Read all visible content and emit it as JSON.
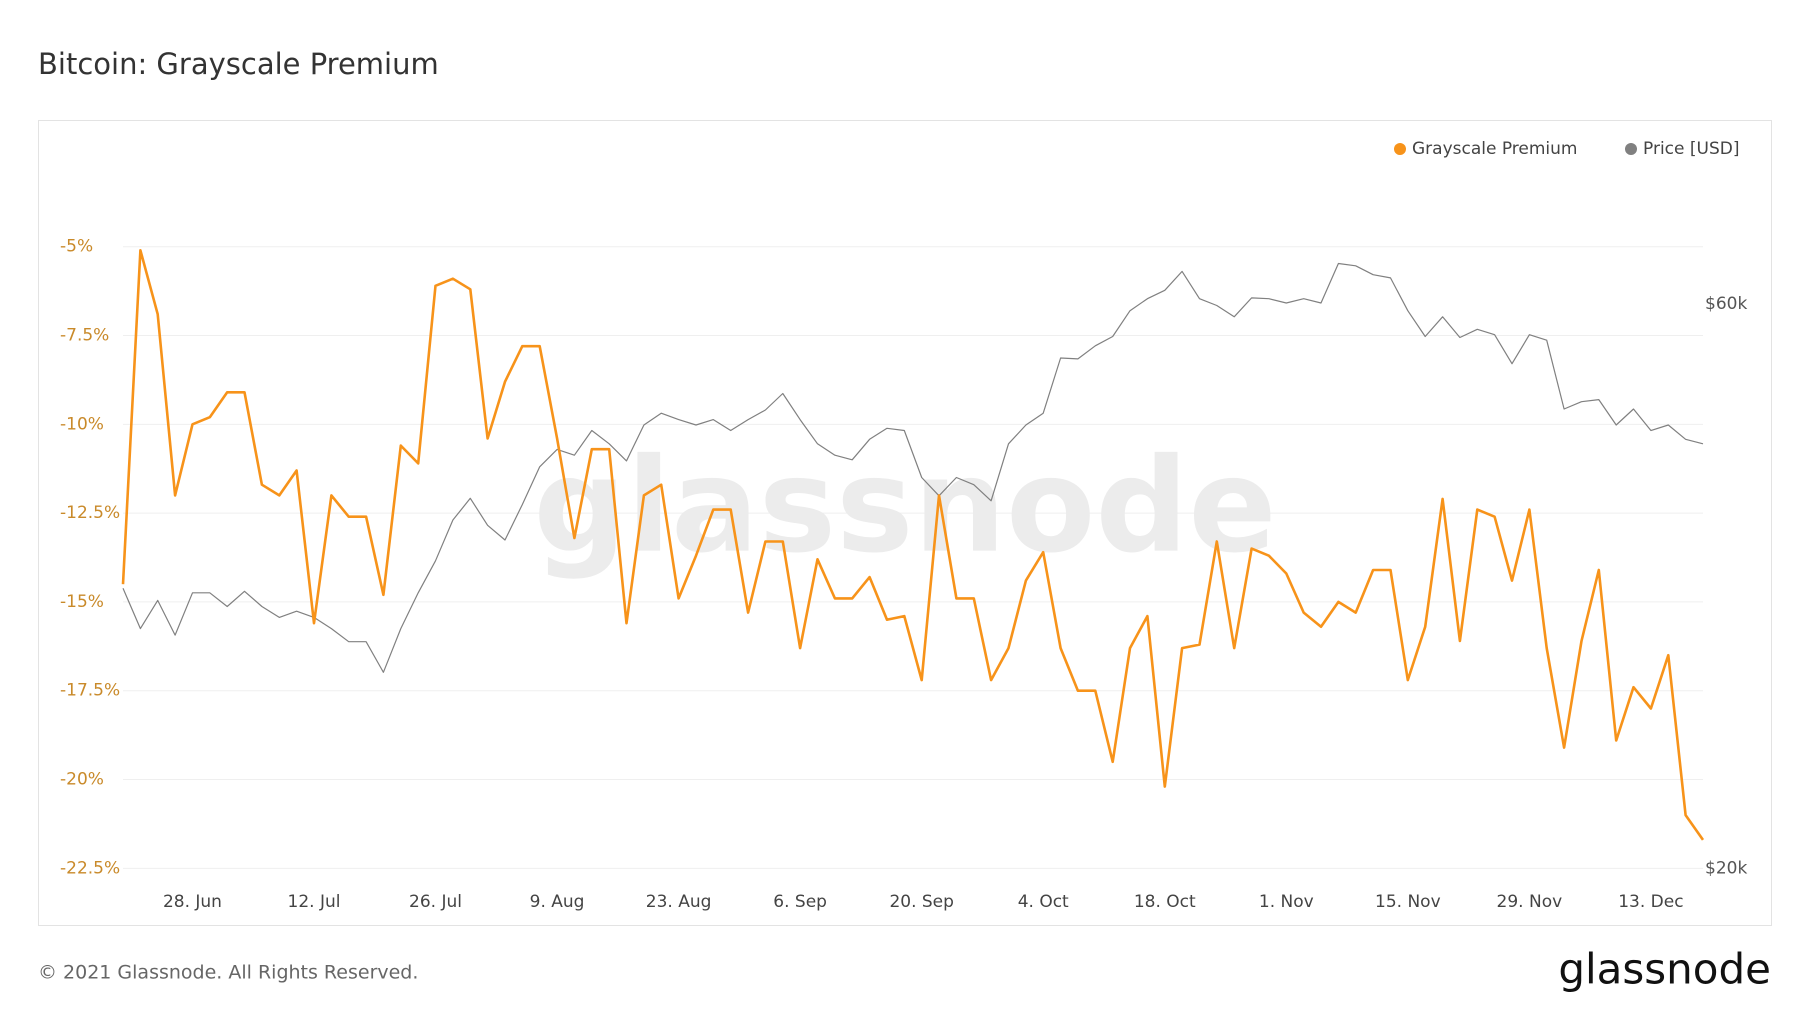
{
  "chart_data": {
    "type": "line",
    "title": "Bitcoin: Grayscale Premium",
    "watermark": "glassnode",
    "categories": [
      null,
      null,
      null,
      null,
      "28. Jun",
      null,
      null,
      null,
      null,
      null,
      null,
      "12. Jul",
      null,
      null,
      null,
      null,
      null,
      null,
      "26. Jul",
      null,
      null,
      null,
      null,
      null,
      null,
      "9. Aug",
      null,
      null,
      null,
      null,
      null,
      null,
      "23. Aug",
      null,
      null,
      null,
      null,
      null,
      null,
      "6. Sep",
      null,
      null,
      null,
      null,
      null,
      null,
      "20. Sep",
      null,
      null,
      null,
      null,
      null,
      null,
      "4. Oct",
      null,
      null,
      null,
      null,
      null,
      null,
      "18. Oct",
      null,
      null,
      null,
      null,
      null,
      null,
      "1. Nov",
      null,
      null,
      null,
      null,
      null,
      null,
      "15. Nov",
      null,
      null,
      null,
      null,
      null,
      null,
      "29. Nov",
      null,
      null,
      null,
      null,
      null,
      null,
      "13. Dec",
      null,
      null,
      null
    ],
    "series": [
      {
        "name": "Grayscale Premium",
        "color": "#f7931a",
        "axis": "y",
        "values": [
          -14.5,
          -5.1,
          -6.9,
          -12.0,
          -10.0,
          -9.8,
          -9.1,
          -9.1,
          -11.7,
          -12.0,
          -11.3,
          -15.6,
          -12.0,
          -12.6,
          -12.6,
          -14.8,
          -10.6,
          -11.1,
          -6.1,
          -5.9,
          -6.2,
          -10.4,
          -8.8,
          -7.8,
          -7.8,
          -10.4,
          -13.2,
          -10.7,
          -10.7,
          -15.6,
          -12.0,
          -11.7,
          -14.9,
          -13.7,
          -12.4,
          -12.4,
          -15.3,
          -13.3,
          -13.3,
          -16.3,
          -13.8,
          -14.9,
          -14.9,
          -14.3,
          -15.5,
          -15.4,
          -17.2,
          -12.0,
          -14.9,
          -14.9,
          -17.2,
          -16.3,
          -14.4,
          -13.6,
          -16.3,
          -17.5,
          -17.5,
          -19.5,
          -16.3,
          -15.4,
          -20.2,
          -16.3,
          -16.2,
          -13.3,
          -16.3,
          -13.5,
          -13.7,
          -14.2,
          -15.3,
          -15.7,
          -15.0,
          -15.3,
          -14.1,
          -14.1,
          -17.2,
          -15.7,
          -12.1,
          -16.1,
          -12.4,
          -12.6,
          -14.4,
          -12.4,
          -16.3,
          -19.1,
          -16.1,
          -14.1,
          -18.9,
          -17.4,
          -18.0,
          -16.5,
          -21.0,
          -21.7
        ]
      },
      {
        "name": "Price [USD]",
        "color": "#808080",
        "axis": "y2",
        "values": [
          34500,
          31900,
          33700,
          31500,
          34200,
          34200,
          33300,
          34300,
          33300,
          32600,
          33000,
          32600,
          31900,
          31100,
          31100,
          29300,
          31900,
          34200,
          36400,
          39400,
          41100,
          39000,
          37900,
          40600,
          43700,
          45200,
          44700,
          46900,
          45700,
          44200,
          47400,
          48500,
          47900,
          47400,
          47900,
          46900,
          47900,
          48800,
          50400,
          47900,
          45700,
          44700,
          44300,
          46100,
          47100,
          46900,
          42800,
          41300,
          42800,
          42200,
          40900,
          45700,
          47400,
          48500,
          54000,
          53900,
          55300,
          56300,
          59200,
          60600,
          61600,
          63900,
          60600,
          59800,
          58500,
          60700,
          60600,
          60100,
          60600,
          60100,
          64900,
          64600,
          63500,
          63100,
          59200,
          56300,
          58500,
          56200,
          57100,
          56500,
          53400,
          56500,
          55900,
          48900,
          49600,
          49800,
          47400,
          48900,
          46900,
          47400,
          46100,
          45700
        ]
      }
    ],
    "ylim": [
      -22.8,
      -2.7
    ],
    "yticks": [
      {
        "value": -22.5,
        "label": "-22.5%"
      },
      {
        "value": -20,
        "label": "-20%"
      },
      {
        "value": -17.5,
        "label": "-17.5%"
      },
      {
        "value": -15,
        "label": "-15%"
      },
      {
        "value": -12.5,
        "label": "-12.5%"
      },
      {
        "value": -10,
        "label": "-10%"
      },
      {
        "value": -7.5,
        "label": "-7.5%"
      },
      {
        "value": -5,
        "label": "-5%"
      }
    ],
    "y2lim": [
      19600,
      78600
    ],
    "y2ticks": [
      {
        "value": 20000,
        "label": "$20k"
      },
      {
        "value": 60000,
        "label": "$60k"
      }
    ],
    "y2log": true,
    "grid": true,
    "legend": "top-right"
  },
  "footer": {
    "copyright": "© 2021 Glassnode. All Rights Reserved.",
    "logo": "glassnode"
  }
}
